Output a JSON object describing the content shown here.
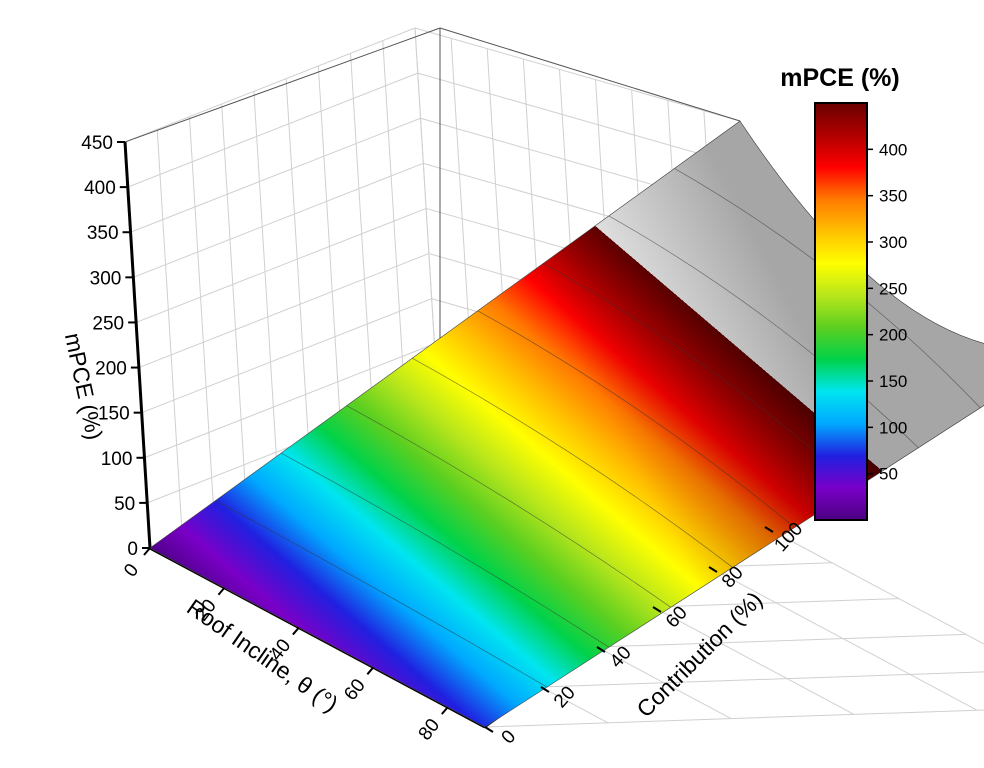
{
  "chart_data": {
    "type": "surface3d",
    "title": "",
    "axes": {
      "x": {
        "label": "Roof Incline, θ (°)",
        "range": [
          0,
          90
        ],
        "ticks": [
          "0",
          "20",
          "40",
          "60",
          "80"
        ]
      },
      "y": {
        "label": "Contribution (%)",
        "range": [
          0,
          100
        ],
        "ticks": [
          "0",
          "20",
          "40",
          "60",
          "80",
          "100"
        ]
      },
      "z": {
        "label": "mPCE (%)",
        "range": [
          0,
          450
        ],
        "ticks": [
          "0",
          "50",
          "100",
          "150",
          "200",
          "250",
          "300",
          "350",
          "400",
          "450"
        ]
      }
    },
    "surface": {
      "description_points": [
        {
          "theta": 0,
          "contribution": 0,
          "mpce": 0
        },
        {
          "theta": 0,
          "contribution": 100,
          "mpce": 450
        },
        {
          "theta": 90,
          "contribution": 100,
          "mpce": 400
        },
        {
          "theta": 90,
          "contribution": 0,
          "mpce": 0
        },
        {
          "theta": 45,
          "contribution": 100,
          "mpce": 300
        },
        {
          "theta": 45,
          "contribution": 50,
          "mpce": 180
        }
      ]
    },
    "colorbar": {
      "title": "mPCE (%)",
      "range": [
        0,
        450
      ],
      "ticks": [
        "50",
        "100",
        "150",
        "200",
        "250",
        "300",
        "350",
        "400"
      ],
      "colors": [
        "#4b0082",
        "#7a00c8",
        "#2020e0",
        "#00a8ff",
        "#00e5f0",
        "#00d24a",
        "#5ccf20",
        "#b8e61c",
        "#ffff00",
        "#ffc000",
        "#ff7a00",
        "#ff0000",
        "#b00000",
        "#6a0000"
      ]
    },
    "grid": true
  }
}
